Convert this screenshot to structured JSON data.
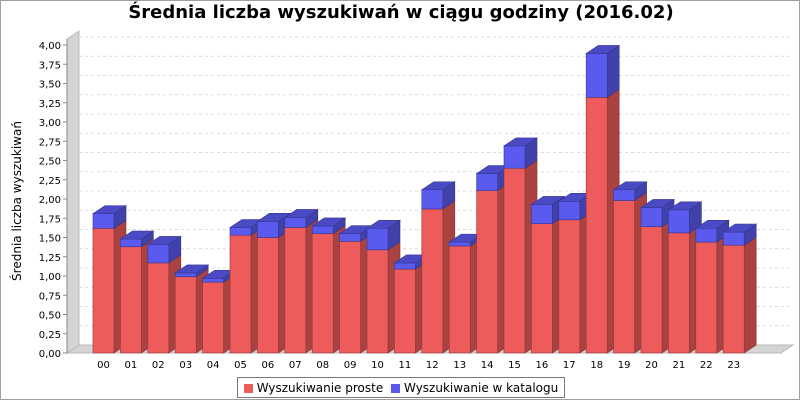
{
  "chart_data": {
    "type": "bar",
    "stacked": true,
    "three_d": true,
    "title": "Średnia liczba wyszukiwań w ciągu godziny (2016.02)",
    "xlabel": "",
    "ylabel": "Średnia liczba wyszukiwań",
    "ylim": [
      0,
      4.0
    ],
    "ytick_step": 0.25,
    "yticks": [
      "0,00",
      "0,25",
      "0,50",
      "0,75",
      "1,00",
      "1,25",
      "1,50",
      "1,75",
      "2,00",
      "2,25",
      "2,50",
      "2,75",
      "3,00",
      "3,25",
      "3,50",
      "3,75",
      "4,00"
    ],
    "grid": true,
    "legend_position": "bottom",
    "categories": [
      "00",
      "01",
      "02",
      "03",
      "04",
      "05",
      "06",
      "07",
      "08",
      "09",
      "10",
      "11",
      "12",
      "13",
      "14",
      "15",
      "16",
      "17",
      "18",
      "19",
      "20",
      "21",
      "22",
      "23"
    ],
    "series": [
      {
        "name": "Wyszukiwanie proste",
        "color": "#ee5b5b",
        "values": [
          1.62,
          1.38,
          1.17,
          0.99,
          0.92,
          1.53,
          1.5,
          1.63,
          1.55,
          1.45,
          1.34,
          1.09,
          1.87,
          1.39,
          2.11,
          2.4,
          1.68,
          1.73,
          3.32,
          1.98,
          1.64,
          1.56,
          1.44,
          1.4
        ]
      },
      {
        "name": "Wyszukiwanie w katalogu",
        "color": "#5a5aef",
        "values": [
          0.19,
          0.1,
          0.24,
          0.05,
          0.05,
          0.1,
          0.21,
          0.13,
          0.1,
          0.1,
          0.28,
          0.08,
          0.25,
          0.05,
          0.22,
          0.29,
          0.25,
          0.24,
          0.57,
          0.14,
          0.25,
          0.3,
          0.18,
          0.17
        ]
      }
    ]
  }
}
